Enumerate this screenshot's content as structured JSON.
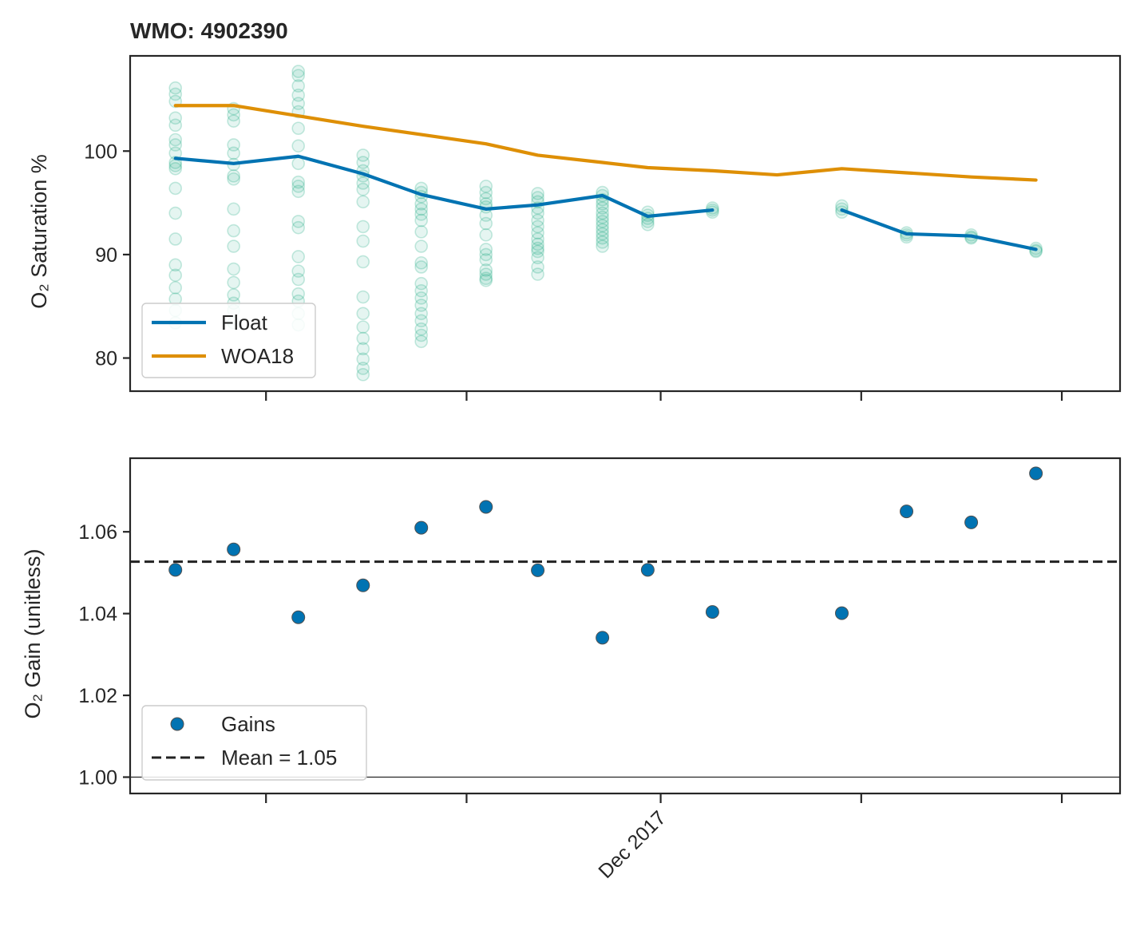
{
  "colors": {
    "float": "#0173b2",
    "woa": "#de8f05",
    "samples": "#029e73",
    "gains": "#0173b2",
    "mean": "#222222",
    "frame": "#262626"
  },
  "chart_data": [
    {
      "type": "line",
      "title": "WMO: 4902390",
      "ylabel": "O₂ Saturation %",
      "xlim": [
        0,
        15.3
      ],
      "ylim": [
        76.8,
        109.2
      ],
      "yticks": [
        80,
        90,
        100
      ],
      "xticks": [
        2.1,
        5.2,
        8.2,
        11.3,
        14.4
      ],
      "xticklabels": [
        "",
        "",
        "",
        "",
        ""
      ],
      "grid": false,
      "legend": {
        "position": "lower-left",
        "entries": [
          "Float",
          "WOA18"
        ]
      },
      "series": [
        {
          "name": "Float",
          "color": "#0173b2",
          "segments": [
            {
              "x": [
                0.7,
                1.6,
                2.6,
                3.6,
                4.5,
                5.5,
                6.3,
                7.3,
                8.0,
                9.0
              ],
              "y": [
                99.3,
                98.8,
                99.5,
                97.8,
                95.8,
                94.4,
                94.8,
                95.7,
                93.7,
                94.3
              ]
            },
            {
              "x": [
                11.0,
                12.0,
                13.0,
                14.0
              ],
              "y": [
                94.3,
                92.0,
                91.8,
                90.5
              ]
            }
          ]
        },
        {
          "name": "WOA18",
          "color": "#de8f05",
          "x": [
            0.7,
            1.6,
            2.6,
            3.6,
            4.5,
            5.5,
            6.3,
            7.3,
            8.0,
            9.0,
            10.0,
            11.0,
            12.0,
            13.0,
            14.0
          ],
          "y": [
            104.4,
            104.4,
            103.4,
            102.4,
            101.6,
            100.7,
            99.6,
            98.9,
            98.4,
            98.1,
            97.7,
            98.3,
            97.9,
            97.5,
            97.2
          ]
        }
      ],
      "samples": [
        {
          "x": 0.7,
          "y": [
            106.1,
            105.5,
            104.8,
            103.2,
            102.5,
            101.1,
            100.6,
            99.8,
            98.9,
            98.6,
            98.3,
            96.4,
            94.0,
            91.5,
            89.0,
            88.0,
            86.8,
            85.7,
            84.6,
            83.4
          ]
        },
        {
          "x": 1.6,
          "y": [
            104.1,
            103.5,
            102.9,
            100.6,
            99.8,
            98.7,
            97.6,
            97.3,
            94.4,
            92.3,
            90.8,
            88.6,
            87.3,
            86.1,
            85.3,
            84.6,
            83.4
          ]
        },
        {
          "x": 2.6,
          "y": [
            107.7,
            107.3,
            106.3,
            105.4,
            104.6,
            103.8,
            102.2,
            100.5,
            98.8,
            97.0,
            96.6,
            96.1,
            93.2,
            92.6,
            89.8,
            88.4,
            87.6,
            86.2,
            85.5,
            84.3,
            83.2
          ]
        },
        {
          "x": 3.6,
          "y": [
            99.6,
            98.9,
            98.1,
            97.6,
            96.9,
            96.3,
            95.1,
            92.7,
            91.3,
            89.3,
            85.9,
            84.3,
            83.0,
            81.9,
            80.9,
            79.9,
            79.0,
            78.4
          ]
        },
        {
          "x": 4.5,
          "y": [
            96.4,
            96.0,
            95.6,
            94.9,
            94.4,
            93.9,
            93.3,
            92.2,
            90.8,
            89.2,
            88.8,
            87.2,
            86.5,
            85.8,
            85.1,
            84.3,
            83.6,
            82.8,
            82.2,
            81.6
          ]
        },
        {
          "x": 5.5,
          "y": [
            96.6,
            96.0,
            95.4,
            94.9,
            94.6,
            93.8,
            93.0,
            91.9,
            90.5,
            90.0,
            89.5,
            88.5,
            88.1,
            87.7,
            87.5
          ]
        },
        {
          "x": 6.3,
          "y": [
            95.9,
            95.5,
            95.1,
            94.5,
            94.0,
            93.3,
            92.7,
            92.1,
            91.5,
            91.0,
            90.6,
            90.3,
            89.7,
            88.8,
            88.1
          ]
        },
        {
          "x": 7.3,
          "y": [
            96.0,
            95.7,
            95.3,
            94.9,
            94.5,
            94.0,
            93.6,
            93.2,
            92.8,
            92.4,
            92.0,
            91.6,
            91.2,
            90.8
          ]
        },
        {
          "x": 8.0,
          "y": [
            94.1,
            93.8,
            93.5,
            93.2,
            92.9
          ]
        },
        {
          "x": 9.0,
          "y": [
            94.5,
            94.3,
            94.1
          ]
        },
        {
          "x": 11.0,
          "y": [
            94.7,
            94.4,
            94.1
          ]
        },
        {
          "x": 12.0,
          "y": [
            92.1,
            91.9,
            91.7
          ]
        },
        {
          "x": 13.0,
          "y": [
            91.9,
            91.7,
            91.6
          ]
        },
        {
          "x": 14.0,
          "y": [
            90.6,
            90.4,
            90.3
          ]
        }
      ]
    },
    {
      "type": "scatter",
      "ylabel": "O₂ Gain (unitless)",
      "xlim": [
        0,
        15.3
      ],
      "ylim": [
        0.996,
        1.078
      ],
      "yticks": [
        1.0,
        1.02,
        1.04,
        1.06
      ],
      "yticklabels": [
        "1.00",
        "1.02",
        "1.04",
        "1.06"
      ],
      "xticks": [
        2.1,
        5.2,
        8.2,
        11.3,
        14.4
      ],
      "xticklabels": [
        "",
        "",
        "Dec 2017",
        "",
        ""
      ],
      "grid": false,
      "hline_ref": 1.0,
      "legend": {
        "position": "lower-left",
        "entries": [
          "Gains",
          "Mean = 1.05"
        ]
      },
      "series": [
        {
          "name": "Gains",
          "x": [
            0.7,
            1.6,
            2.6,
            3.6,
            4.5,
            5.5,
            6.3,
            7.3,
            8.0,
            9.0,
            11.0,
            12.0,
            13.0,
            14.0
          ],
          "y": [
            1.0507,
            1.0557,
            1.0391,
            1.0469,
            1.061,
            1.0661,
            1.0506,
            1.0341,
            1.0507,
            1.0404,
            1.0401,
            1.065,
            1.0623,
            1.0743
          ]
        },
        {
          "name": "Mean = 1.05",
          "y": 1.0527,
          "style": "dashed"
        }
      ]
    }
  ]
}
